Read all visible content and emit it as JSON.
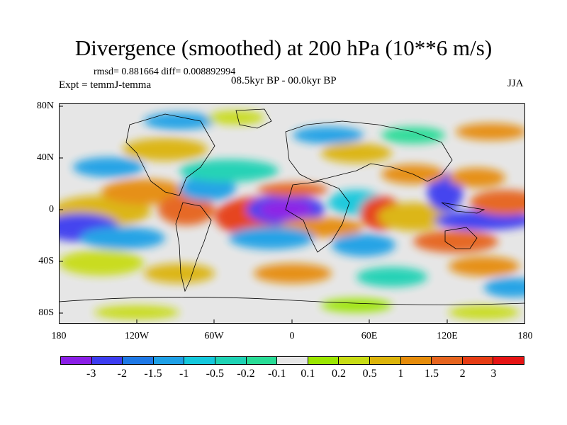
{
  "title": "Divergence (smoothed) at 200 hPa (10**6 m/s)",
  "stats": "rmsd= 0.881664  diff= 0.008892994",
  "subtitle": "08.5kyr BP - 00.0kyr BP",
  "experiment": "Expt = temmJ-temma",
  "season": "JJA",
  "map": {
    "y_ticks": [
      "80N",
      "40N",
      "0",
      "40S",
      "80S"
    ],
    "x_ticks": [
      "180",
      "120W",
      "60W",
      "0",
      "60E",
      "120E",
      "180"
    ],
    "background_color": "#e6e6e6"
  },
  "colorbar": {
    "labels": [
      "-3",
      "-2",
      "-1.5",
      "-1",
      "-0.5",
      "-0.2",
      "-0.1",
      "0.1",
      "0.2",
      "0.5",
      "1",
      "1.5",
      "2",
      "3"
    ],
    "colors": [
      "#8a1ee6",
      "#3c3cf0",
      "#1e78e6",
      "#1ea0e6",
      "#14c8dc",
      "#1ed2b4",
      "#28dc96",
      "#e6e6e6",
      "#9be600",
      "#c8dc14",
      "#dcb40a",
      "#e68c0a",
      "#e6641e",
      "#e63c14",
      "#e61414"
    ]
  }
}
